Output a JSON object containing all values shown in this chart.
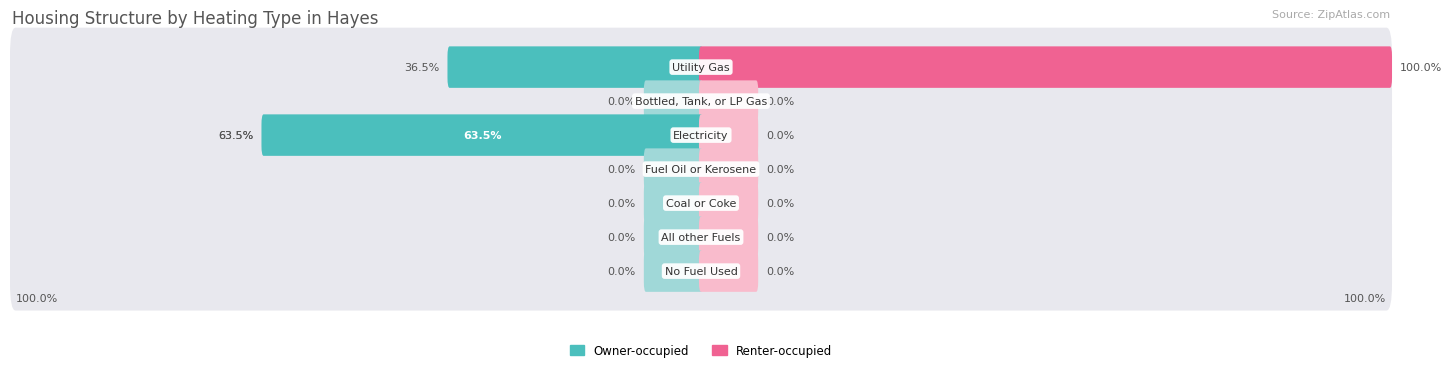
{
  "title": "Housing Structure by Heating Type in Hayes",
  "source": "Source: ZipAtlas.com",
  "categories": [
    "Utility Gas",
    "Bottled, Tank, or LP Gas",
    "Electricity",
    "Fuel Oil or Kerosene",
    "Coal or Coke",
    "All other Fuels",
    "No Fuel Used"
  ],
  "owner_values": [
    36.5,
    0.0,
    63.5,
    0.0,
    0.0,
    0.0,
    0.0
  ],
  "renter_values": [
    100.0,
    0.0,
    0.0,
    0.0,
    0.0,
    0.0,
    0.0
  ],
  "owner_color": "#4BBFBD",
  "owner_color_light": "#A0D8D8",
  "renter_color": "#F06292",
  "renter_color_light": "#F9BBCC",
  "background_color": "#ffffff",
  "bar_bg_color": "#e8e8ee",
  "max_value": 100.0,
  "stub_value": 8.0,
  "title_fontsize": 12,
  "source_fontsize": 8,
  "label_fontsize": 8,
  "category_fontsize": 8,
  "legend_fontsize": 8.5
}
